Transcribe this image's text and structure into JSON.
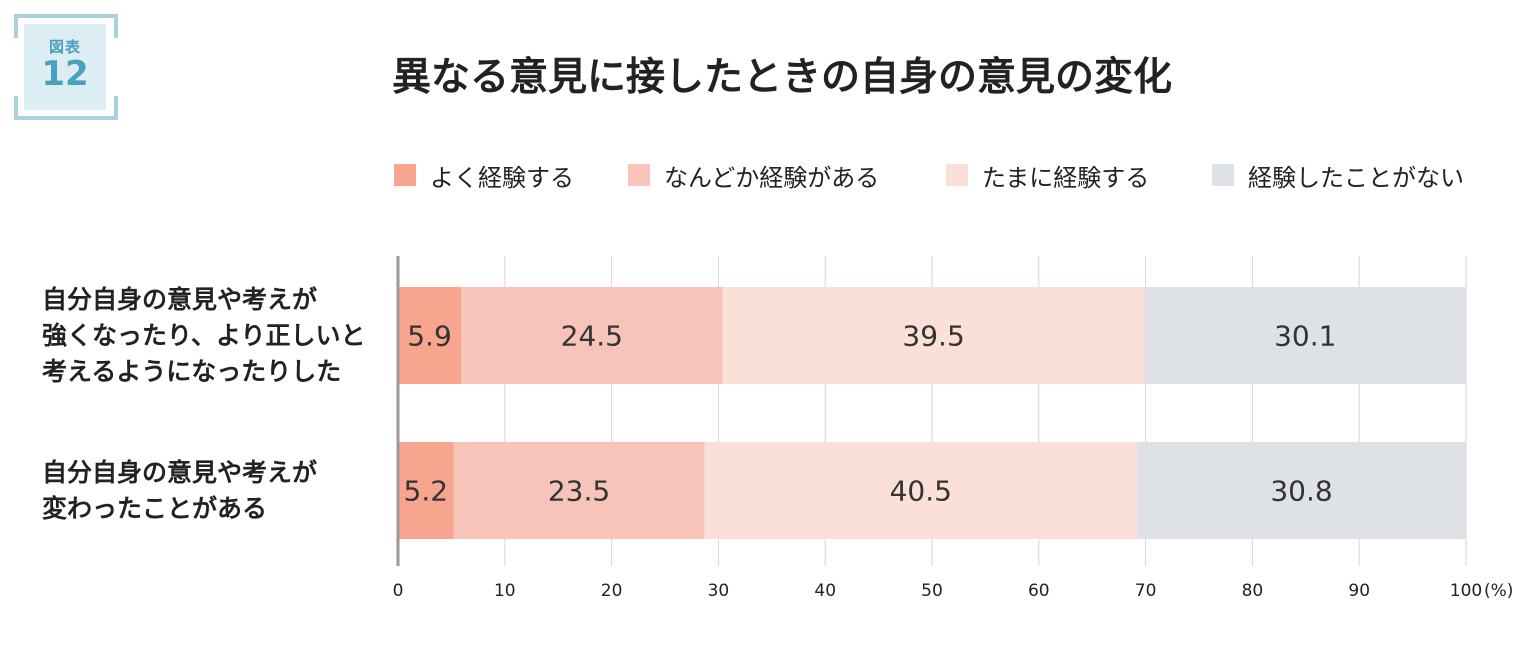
{
  "badge": {
    "label": "図表",
    "number": "12"
  },
  "chart_data": {
    "type": "bar",
    "orientation": "horizontal",
    "stacked": true,
    "title": "異なる意見に接したときの自身の意見の変化",
    "unit": "(%)",
    "xlim": [
      0,
      100
    ],
    "xticks": [
      "0",
      "10",
      "20",
      "30",
      "40",
      "50",
      "60",
      "70",
      "80",
      "90",
      "100"
    ],
    "grid": true,
    "legend_position": "top",
    "categories": [
      [
        "自分自身の意見や考えが",
        "強くなったり、より正しいと",
        "考えるようになったりした"
      ],
      [
        "自分自身の意見や考えが",
        "変わったことがある"
      ]
    ],
    "series": [
      {
        "name": "よく経験する",
        "color": "#f7a58f",
        "values": [
          5.9,
          5.2
        ]
      },
      {
        "name": "なんどか経験がある",
        "color": "#f8c4ba",
        "values": [
          24.5,
          23.5
        ]
      },
      {
        "name": "たまに経験する",
        "color": "#fbe0d8",
        "values": [
          39.5,
          40.5
        ]
      },
      {
        "name": "経験したことがない",
        "color": "#dee2e7",
        "values": [
          30.1,
          30.8
        ]
      }
    ]
  }
}
